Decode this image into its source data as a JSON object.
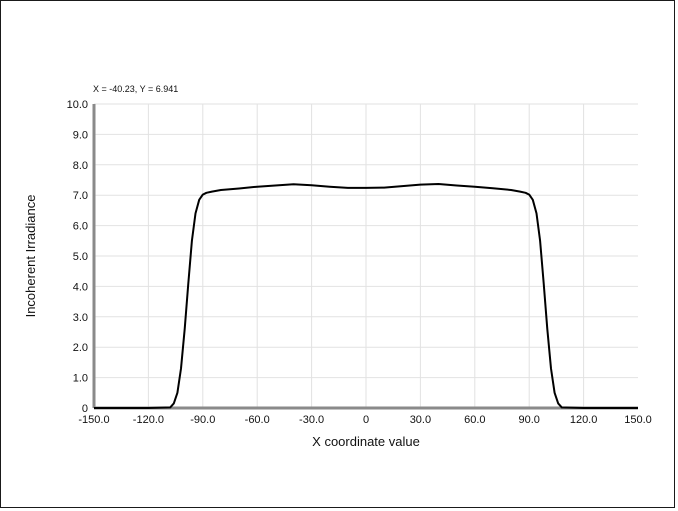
{
  "readout": "X = -40.23, Y = 6.941",
  "chart_data": {
    "type": "line",
    "title": "",
    "xlabel": "X coordinate value",
    "ylabel": "Incoherent Irradiance",
    "xlim": [
      -150,
      150
    ],
    "ylim": [
      0,
      10
    ],
    "grid": true,
    "x_ticks": [
      "-150.0",
      "-120.0",
      "-90.0",
      "-60.0",
      "-30.0",
      "0",
      "30.0",
      "60.0",
      "90.0",
      "120.0",
      "150.0"
    ],
    "y_ticks": [
      "0",
      "1.0",
      "2.0",
      "3.0",
      "4.0",
      "5.0",
      "6.0",
      "7.0",
      "8.0",
      "9.0",
      "10.0"
    ],
    "series": [
      {
        "color": "#000000",
        "x": [
          -150,
          -120,
          -108,
          -106,
          -104,
          -102,
          -100,
          -98,
          -96,
          -94,
          -92,
          -90,
          -88,
          -85,
          -80,
          -70,
          -60,
          -50,
          -40,
          -30,
          -20,
          -10,
          0,
          10,
          20,
          30,
          40,
          50,
          60,
          70,
          80,
          85,
          88,
          90,
          92,
          94,
          96,
          98,
          100,
          102,
          104,
          106,
          108,
          120,
          150
        ],
        "y": [
          0,
          0,
          0.02,
          0.15,
          0.5,
          1.3,
          2.6,
          4.1,
          5.5,
          6.4,
          6.85,
          7.02,
          7.08,
          7.12,
          7.17,
          7.22,
          7.28,
          7.32,
          7.36,
          7.33,
          7.28,
          7.24,
          7.24,
          7.25,
          7.3,
          7.35,
          7.37,
          7.32,
          7.28,
          7.23,
          7.17,
          7.12,
          7.08,
          7.02,
          6.85,
          6.4,
          5.5,
          4.1,
          2.6,
          1.3,
          0.5,
          0.15,
          0.02,
          0,
          0
        ]
      }
    ]
  }
}
